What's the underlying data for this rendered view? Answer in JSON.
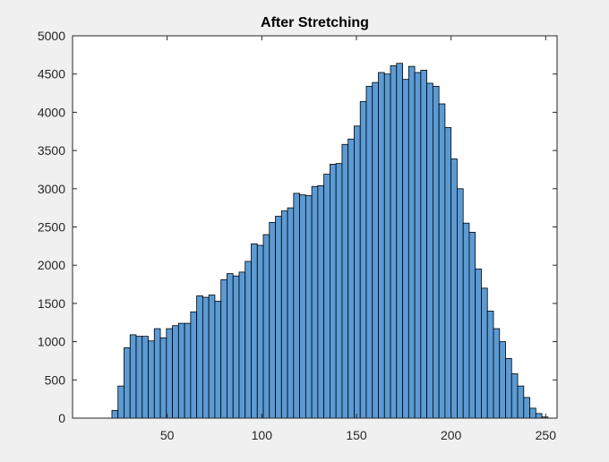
{
  "chart_data": {
    "type": "bar",
    "title": "After Stretching",
    "xlabel": "",
    "ylabel": "",
    "xlim": [
      0,
      256
    ],
    "ylim": [
      0,
      5000
    ],
    "xticks": [
      50,
      100,
      150,
      200,
      250
    ],
    "yticks": [
      0,
      500,
      1000,
      1500,
      2000,
      2500,
      3000,
      3500,
      4000,
      4500,
      5000
    ],
    "bin_width": 3.2,
    "bin_start": 20.8,
    "values": [
      100,
      420,
      920,
      1090,
      1070,
      1070,
      1010,
      1170,
      1050,
      1170,
      1210,
      1240,
      1240,
      1390,
      1600,
      1580,
      1610,
      1530,
      1810,
      1890,
      1860,
      1910,
      2050,
      2280,
      2260,
      2400,
      2560,
      2640,
      2710,
      2750,
      2940,
      2920,
      2910,
      3030,
      3040,
      3190,
      3320,
      3330,
      3580,
      3650,
      3820,
      4140,
      4340,
      4390,
      4520,
      4500,
      4610,
      4640,
      4430,
      4600,
      4520,
      4550,
      4380,
      4340,
      4110,
      3800,
      3390,
      3000,
      2550,
      2430,
      1950,
      1700,
      1400,
      1170,
      1000,
      780,
      580,
      420,
      270,
      130,
      60,
      15
    ],
    "grid": false,
    "legend": "none",
    "colors": {
      "bar_fill": "#5b9bd5",
      "bar_edge": "#000000",
      "axes_background": "#ffffff",
      "figure_background": "#f0f0f0",
      "axis_line": "#262626"
    }
  }
}
